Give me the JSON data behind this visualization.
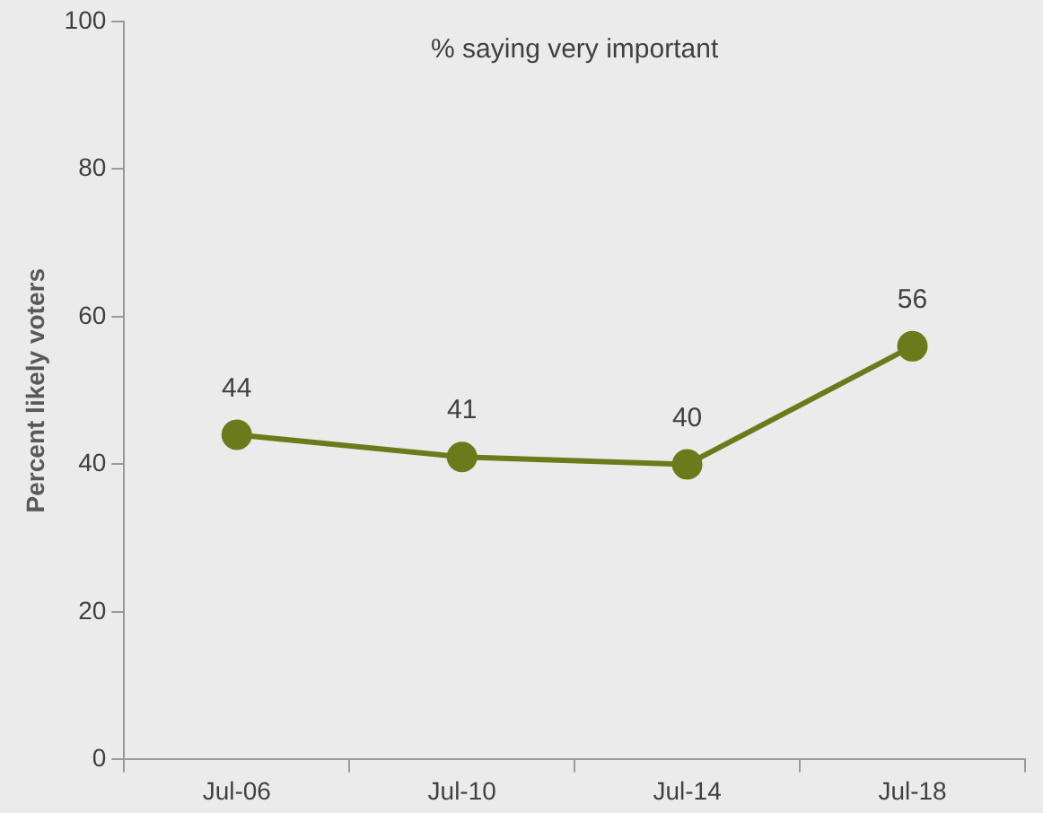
{
  "chart_data": {
    "type": "line",
    "title": "% saying very important",
    "ylabel": "Percent likely voters",
    "categories": [
      "Jul-06",
      "Jul-10",
      "Jul-14",
      "Jul-18"
    ],
    "series": [
      {
        "color": "#6b7b1b",
        "values": [
          44,
          41,
          40,
          56
        ]
      }
    ],
    "ylim": [
      0,
      100
    ],
    "yticks": [
      0,
      20,
      40,
      60,
      80,
      100
    ],
    "grid": false,
    "legend": false,
    "marker": "circle",
    "line_style": "solid",
    "data_labels": true
  }
}
